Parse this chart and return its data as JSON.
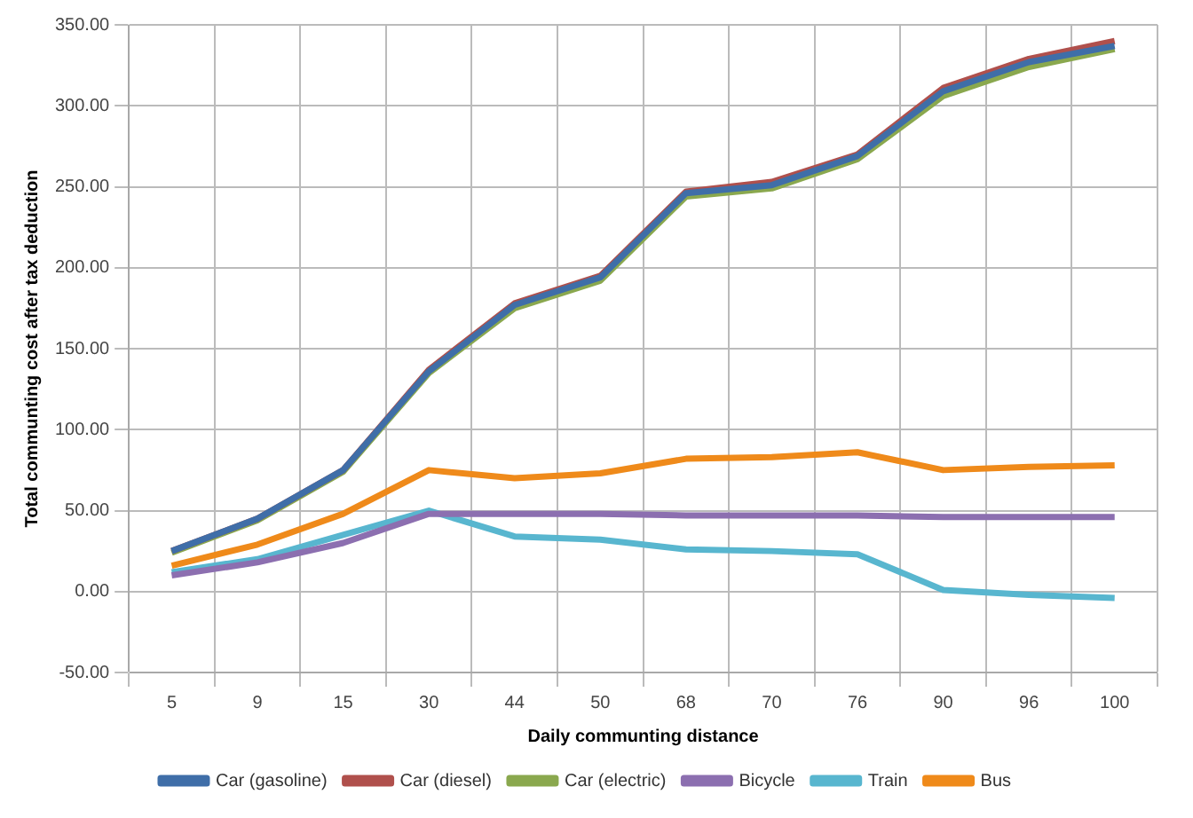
{
  "chart_data": {
    "type": "line",
    "xlabel": "Daily communting distance",
    "ylabel": "Total communting cost after tax deduction",
    "categories": [
      "5",
      "9",
      "15",
      "30",
      "44",
      "50",
      "68",
      "70",
      "76",
      "90",
      "96",
      "100"
    ],
    "series": [
      {
        "name": "Car (gasoline)",
        "color": "#3f6ea8",
        "values": [
          25,
          45,
          75,
          136,
          177,
          194,
          246,
          251,
          269,
          309,
          327,
          337
        ]
      },
      {
        "name": "Car (diesel)",
        "color": "#b0504c",
        "values": [
          25,
          45,
          75,
          137,
          178,
          195,
          247,
          253,
          270,
          311,
          329,
          340
        ]
      },
      {
        "name": "Car (electric)",
        "color": "#8aa84e",
        "values": [
          24,
          44,
          74,
          135,
          175,
          192,
          244,
          249,
          267,
          306,
          324,
          335
        ]
      },
      {
        "name": "Bicycle",
        "color": "#8c6fb0",
        "values": [
          10,
          18,
          30,
          48,
          48,
          48,
          47,
          47,
          47,
          46,
          46,
          46
        ]
      },
      {
        "name": "Train",
        "color": "#58b6cf",
        "values": [
          12,
          20,
          35,
          50,
          34,
          32,
          26,
          25,
          23,
          1,
          -2,
          -4
        ]
      },
      {
        "name": "Bus",
        "color": "#ef8a1a",
        "values": [
          16,
          29,
          48,
          75,
          70,
          73,
          82,
          83,
          86,
          75,
          77,
          78
        ]
      }
    ],
    "ylim": [
      -50,
      350
    ],
    "yticks": [
      {
        "value": -50,
        "label": "-50.00"
      },
      {
        "value": 0,
        "label": "0.00"
      },
      {
        "value": 50,
        "label": "50.00"
      },
      {
        "value": 100,
        "label": "100.00"
      },
      {
        "value": 150,
        "label": "150.00"
      },
      {
        "value": 200,
        "label": "200.00"
      },
      {
        "value": 250,
        "label": "250.00"
      },
      {
        "value": 300,
        "label": "300.00"
      },
      {
        "value": 350,
        "label": "350.00"
      }
    ],
    "grid": true,
    "legend": "bottom",
    "marker": "none",
    "line_style": "solid"
  }
}
